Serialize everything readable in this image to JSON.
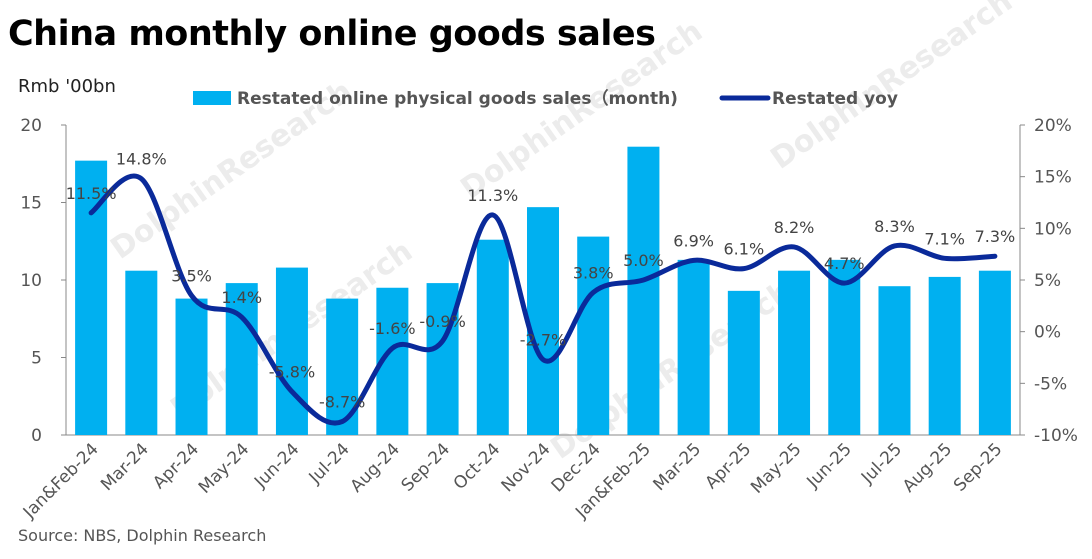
{
  "title": "China monthly online goods sales",
  "unit_label": "Rmb '00bn",
  "source": "Source: NBS, Dolphin Research",
  "watermark": "DolphinResearch",
  "chart_data": {
    "type": "bar+line",
    "categories": [
      "Jan&Feb-24",
      "Mar-24",
      "Apr-24",
      "May-24",
      "Jun-24",
      "Jul-24",
      "Aug-24",
      "Sep-24",
      "Oct-24",
      "Nov-24",
      "Dec-24",
      "Jan&Feb-25",
      "Mar-25",
      "Apr-25",
      "May-25",
      "Jun-25",
      "Jul-25",
      "Aug-25",
      "Sep-25"
    ],
    "series": [
      {
        "name": "Restated online physical goods sales（month)",
        "type": "bar",
        "axis": "left",
        "color": "#00b0f0",
        "values": [
          17.7,
          10.6,
          8.8,
          9.8,
          10.8,
          8.8,
          9.5,
          9.8,
          12.6,
          14.7,
          12.8,
          18.6,
          11.3,
          9.3,
          10.6,
          11.3,
          9.6,
          10.2,
          10.6
        ]
      },
      {
        "name": "Restated yoy",
        "type": "line",
        "axis": "right",
        "color": "#0a2a9a",
        "values": [
          11.5,
          14.8,
          3.5,
          1.4,
          -5.8,
          -8.7,
          -1.6,
          -0.9,
          11.3,
          -2.7,
          3.8,
          5.0,
          6.9,
          6.1,
          8.2,
          4.7,
          8.3,
          7.1,
          7.3
        ],
        "labels": [
          "11.5%",
          "14.8%",
          "3.5%",
          "1.4%",
          "-5.8%",
          "-8.7%",
          "-1.6%",
          "-0.9%",
          "11.3%",
          "-2.7%",
          "3.8%",
          "5.0%",
          "6.9%",
          "6.1%",
          "8.2%",
          "4.7%",
          "8.3%",
          "7.1%",
          "7.3%"
        ]
      }
    ],
    "left_axis": {
      "range": [
        0,
        20
      ],
      "ticks": [
        "0",
        "5",
        "10",
        "15",
        "20"
      ]
    },
    "right_axis": {
      "range": [
        -10,
        20
      ],
      "ticks": [
        "-10%",
        "-5%",
        "0%",
        "5%",
        "10%",
        "15%",
        "20%"
      ]
    },
    "legend": "top",
    "grid": false
  }
}
